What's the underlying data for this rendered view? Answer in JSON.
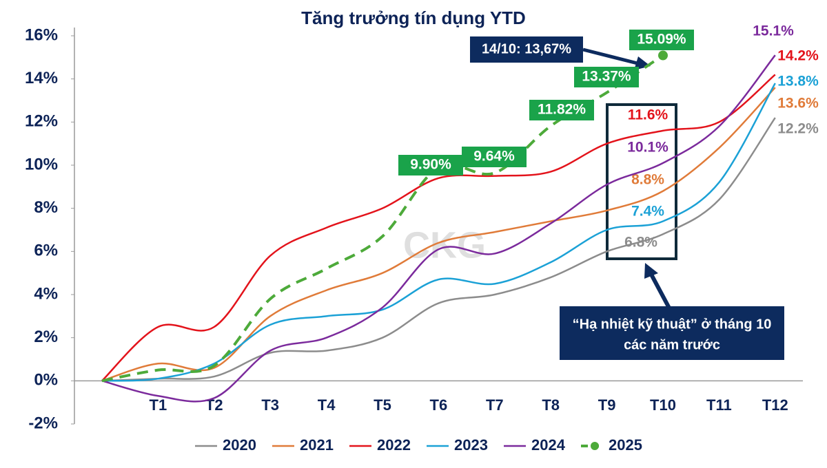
{
  "chart_data": {
    "type": "line",
    "title": "Tăng trưởng tín dụng YTD",
    "categories": [
      null,
      "T1",
      "T2",
      "T3",
      "T4",
      "T5",
      "T6",
      "T7",
      "T8",
      "T9",
      "T10",
      "T11",
      "T12"
    ],
    "series": [
      {
        "name": "2020",
        "color": "#8c8c8c",
        "values": [
          0,
          0.1,
          0.2,
          1.3,
          1.4,
          2.0,
          3.6,
          4.0,
          4.8,
          6.0,
          6.8,
          8.4,
          12.2
        ],
        "value_labels": [
          null,
          null,
          null,
          null,
          null,
          null,
          null,
          null,
          null,
          null,
          "6.8%",
          null,
          "12.2%"
        ]
      },
      {
        "name": "2021",
        "color": "#e07b39",
        "values": [
          0,
          0.8,
          0.6,
          3.0,
          4.2,
          5.0,
          6.4,
          6.9,
          7.4,
          7.9,
          8.8,
          10.8,
          13.6
        ],
        "value_labels": [
          null,
          null,
          null,
          null,
          null,
          null,
          null,
          null,
          null,
          null,
          "8.8%",
          null,
          "13.6%"
        ]
      },
      {
        "name": "2022",
        "color": "#e3131b",
        "values": [
          0,
          2.5,
          2.5,
          5.8,
          7.1,
          8.0,
          9.4,
          9.5,
          9.7,
          11.0,
          11.6,
          12.0,
          14.2
        ],
        "value_labels": [
          null,
          null,
          null,
          null,
          null,
          null,
          null,
          null,
          null,
          null,
          "11.6%",
          null,
          "14.2%"
        ]
      },
      {
        "name": "2023",
        "color": "#1ba1d6",
        "values": [
          0,
          0.1,
          0.8,
          2.6,
          3.0,
          3.3,
          4.7,
          4.5,
          5.5,
          7.0,
          7.4,
          9.2,
          13.8
        ],
        "value_labels": [
          null,
          null,
          null,
          null,
          null,
          null,
          null,
          null,
          null,
          null,
          "7.4%",
          null,
          "13.8%"
        ]
      },
      {
        "name": "2024",
        "color": "#7b2a9c",
        "values": [
          0,
          -0.7,
          -0.8,
          1.4,
          2.0,
          3.4,
          6.1,
          5.9,
          7.3,
          9.1,
          10.1,
          11.8,
          15.1
        ],
        "value_labels": [
          null,
          null,
          null,
          null,
          null,
          null,
          null,
          null,
          null,
          null,
          "10.1%",
          null,
          "15.1%"
        ]
      },
      {
        "name": "2025",
        "color": "#4daa3a",
        "dashed": true,
        "values": [
          0,
          0.5,
          0.7,
          3.8,
          5.2,
          6.7,
          9.9,
          9.64,
          11.82,
          13.37,
          15.09,
          null,
          null
        ],
        "value_labels": [
          null,
          null,
          null,
          null,
          null,
          null,
          "9.90%",
          "9.64%",
          "11.82%",
          "13.37%",
          "15.09%",
          null,
          null
        ]
      }
    ],
    "ylim": [
      -2,
      16
    ],
    "yticks": [
      {
        "value": -2,
        "label": "-2%"
      },
      {
        "value": 0,
        "label": "0%"
      },
      {
        "value": 2,
        "label": "2%"
      },
      {
        "value": 4,
        "label": "4%"
      },
      {
        "value": 6,
        "label": "6%"
      },
      {
        "value": 8,
        "label": "8%"
      },
      {
        "value": 10,
        "label": "10%"
      },
      {
        "value": 12,
        "label": "12%"
      },
      {
        "value": 14,
        "label": "14%"
      },
      {
        "value": 16,
        "label": "16%"
      }
    ],
    "legend": "bottom",
    "annotations": [
      "14/10: 13,67%",
      "“Hạ nhiệt kỹ thuật” ở tháng 10",
      "các năm trước"
    ],
    "watermark": "CKG"
  }
}
